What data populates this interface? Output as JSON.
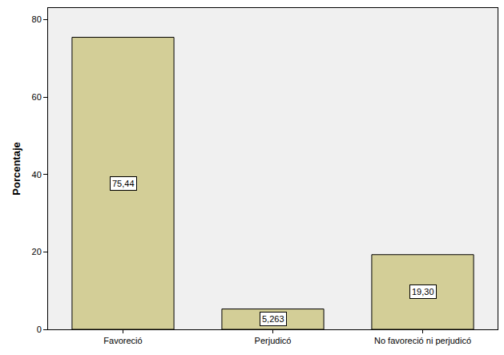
{
  "chart_data": {
    "type": "bar",
    "categories": [
      "Favoreció",
      "Perjudicó",
      "No favoreció ni perjudicó"
    ],
    "values": [
      75.44,
      5.263,
      19.3
    ],
    "value_labels": [
      "75,44",
      "5,263",
      "19,30"
    ],
    "data_labels": true,
    "color": "#d3ce97",
    "y_label": "Porcentaje",
    "ylim": [
      0,
      83
    ],
    "yticks": [
      0,
      20,
      40,
      60,
      80
    ],
    "grid": false
  }
}
